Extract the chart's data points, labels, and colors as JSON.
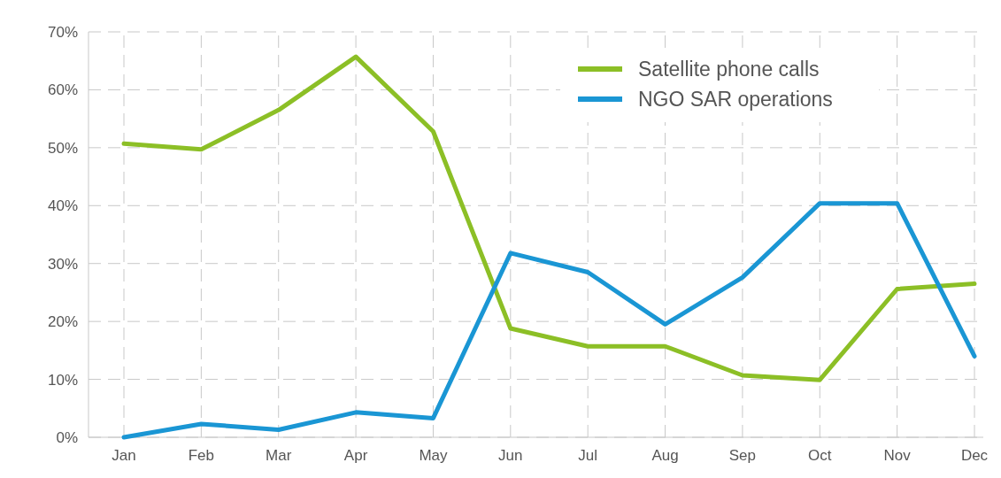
{
  "chart_data": {
    "type": "line",
    "categories": [
      "Jan",
      "Feb",
      "Mar",
      "Apr",
      "May",
      "Jun",
      "Jul",
      "Aug",
      "Sep",
      "Oct",
      "Nov",
      "Dec"
    ],
    "series": [
      {
        "name": "Satellite phone calls",
        "color": "#8cbf26",
        "values": [
          50.7,
          49.7,
          56.5,
          65.7,
          52.8,
          18.8,
          15.7,
          15.7,
          10.7,
          9.9,
          25.6,
          26.5
        ]
      },
      {
        "name": "NGO SAR operations",
        "color": "#1a96d4",
        "values": [
          0,
          2.3,
          1.3,
          4.3,
          3.3,
          31.8,
          28.5,
          19.5,
          27.6,
          40.4,
          40.4,
          14
        ]
      }
    ],
    "ylim": [
      0,
      70
    ],
    "yticks": [
      {
        "value": 0,
        "label": "0%"
      },
      {
        "value": 10,
        "label": "10%"
      },
      {
        "value": 20,
        "label": "20%"
      },
      {
        "value": 30,
        "label": "30%"
      },
      {
        "value": 40,
        "label": "40%"
      },
      {
        "value": 50,
        "label": "50%"
      },
      {
        "value": 60,
        "label": "60%"
      },
      {
        "value": 70,
        "label": "70%"
      }
    ],
    "grid": true,
    "legend": "top right",
    "line_style": "solid",
    "marker": "none"
  }
}
